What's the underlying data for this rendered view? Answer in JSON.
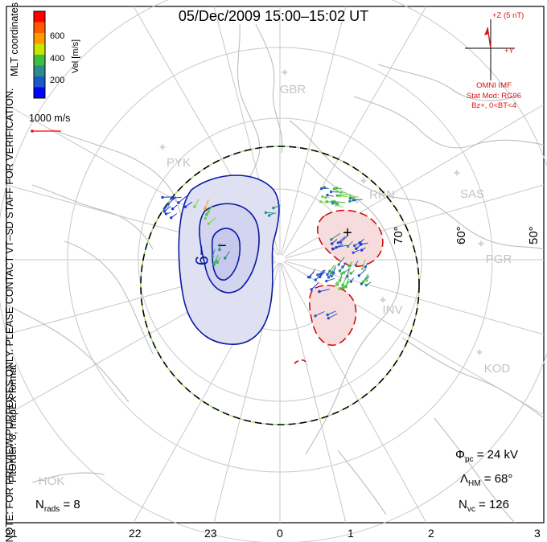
{
  "title": "05/Dec/2009 15:00–15:02 UT",
  "coordinates_label": "MLT coordinates",
  "note_line1": "NOTE: FOR PREVIEW PURPOSES ONLY. PLEASE CONTACT VT–SD STAFF FOR VERIFICATION.",
  "note_line2": "FitOrder: 8, mapEX format",
  "color_scale": {
    "label": "Vel [m/s]",
    "ticks": [
      "600",
      "400",
      "200"
    ],
    "colors": [
      "#ff0000",
      "#ff5a00",
      "#ff9a00",
      "#c8e600",
      "#3fbf3f",
      "#2a8c8c",
      "#1a5ac8",
      "#0000ff"
    ]
  },
  "vector_scale_label": "1000 m/s",
  "imf": {
    "z_label": "+Z (5 nT)",
    "y_label": "+Y",
    "source": "OMNI IMF",
    "stat_model": "Stat Mod: RG96",
    "condition": "Bz+, 0<BT<4"
  },
  "stations": [
    "GBR",
    "PYK",
    "RKN",
    "SAS",
    "PGR",
    "INV",
    "KOD",
    "HOK"
  ],
  "latitude_labels": [
    "70°",
    "60°",
    "50°"
  ],
  "mlt_labels": [
    "21",
    "22",
    "23",
    "0",
    "1",
    "2",
    "3"
  ],
  "contour_labels": [
    "−9",
    "−",
    "+"
  ],
  "stats": {
    "phi_pc": "24 kV",
    "lambda_hm": "68°",
    "n_vc": "126",
    "n_rads": "8"
  },
  "colors": {
    "grid": "#c8c8c8",
    "coast": "#bdbdbd",
    "negative_contour": "#0a1aa0",
    "positive_contour": "#d01010",
    "negative_fill": "#dfe0f2",
    "negative_fill_inner": "#c6c8ec",
    "positive_fill": "#f6dcdc",
    "imf": "#e01010"
  }
}
